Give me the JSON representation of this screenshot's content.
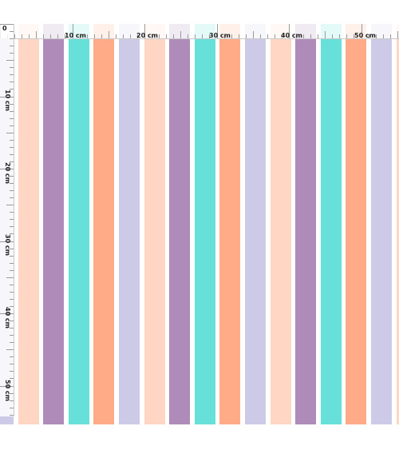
{
  "ruler": {
    "origin_label": "0",
    "unit": "cm",
    "top_labels": [
      "10 cm",
      "20 cm",
      "30 cm",
      "40 cm",
      "50 cm"
    ],
    "left_labels": [
      "10 cm",
      "20 cm",
      "30 cm",
      "40 cm",
      "50 cm"
    ]
  },
  "pattern": {
    "stripe_colors": [
      "#cdcae8",
      "#ffffff",
      "#ffd5c4",
      "#ffffff",
      "#ae8bb8",
      "#ffffff",
      "#66e0d8",
      "#ffffff",
      "#ffab88",
      "#ffffff",
      "#cdcae8",
      "#ffffff",
      "#ffd5c4",
      "#ffffff",
      "#ae8bb8",
      "#ffffff",
      "#66e0d8",
      "#ffffff",
      "#ffab88",
      "#ffffff",
      "#cdcae8",
      "#ffffff",
      "#ffd5c4",
      "#ffffff",
      "#ae8bb8",
      "#ffffff",
      "#66e0d8",
      "#ffffff",
      "#ffab88",
      "#ffffff",
      "#cdcae8",
      "#ffffff",
      "#ffd5c4"
    ]
  }
}
